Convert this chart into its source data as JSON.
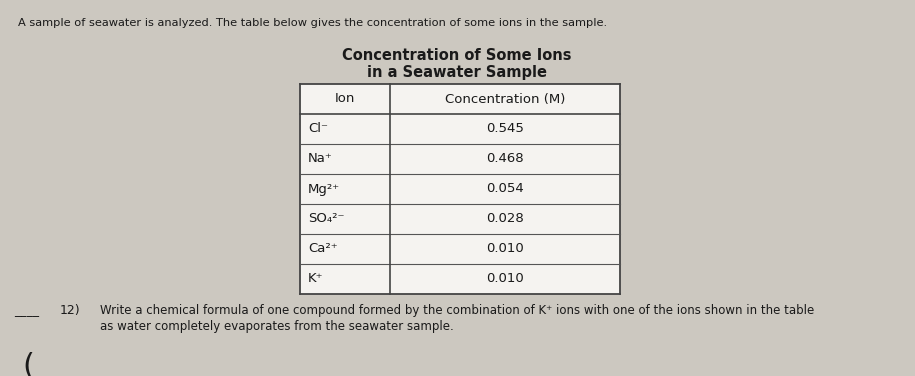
{
  "intro_text": "A sample of seawater is analyzed. The table below gives the concentration of some ions in the sample.",
  "title_line1": "Concentration of Some Ions",
  "title_line2": "in a Seawater Sample",
  "col_headers": [
    "Ion",
    "Concentration (M)"
  ],
  "ions": [
    "Cl⁻",
    "Na⁺",
    "Mg²⁺",
    "SO₄²⁻",
    "Ca²⁺",
    "K⁺"
  ],
  "concentrations": [
    "0.545",
    "0.468",
    "0.054",
    "0.028",
    "0.010",
    "0.010"
  ],
  "question_number": "12)",
  "line_label": "____",
  "background_color": "#ccc8c0",
  "table_bg": "#f5f3f0",
  "text_color": "#1a1a1a"
}
